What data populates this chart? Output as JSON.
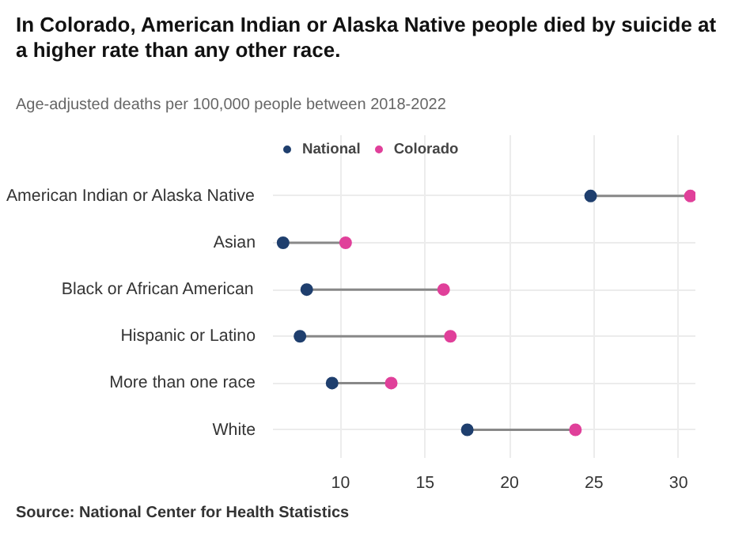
{
  "chart_data": {
    "type": "scatter",
    "title": "In Colorado, American Indian or Alaska Native people died by suicide at a higher rate than any other race.",
    "subtitle": "Age-adjusted deaths per 100,000 people between 2018-2022",
    "orientation": "horizontal",
    "categories": [
      "American Indian or Alaska Native",
      "Asian",
      "Black or African American",
      "Hispanic or Latino",
      "More than one race",
      "White"
    ],
    "series": [
      {
        "name": "National",
        "color": "#1f3f6e",
        "values": [
          24.8,
          6.6,
          8.0,
          7.6,
          9.5,
          17.5
        ]
      },
      {
        "name": "Colorado",
        "color": "#e0409a",
        "values": [
          30.7,
          10.3,
          16.1,
          16.5,
          13.0,
          23.9
        ]
      }
    ],
    "xlim": [
      6,
      31
    ],
    "xticks": [
      10,
      15,
      20,
      25,
      30
    ],
    "grid": true,
    "legend": "top left",
    "marker": "circle",
    "annotations": [
      "Source: National Center for Health Statistics"
    ]
  }
}
